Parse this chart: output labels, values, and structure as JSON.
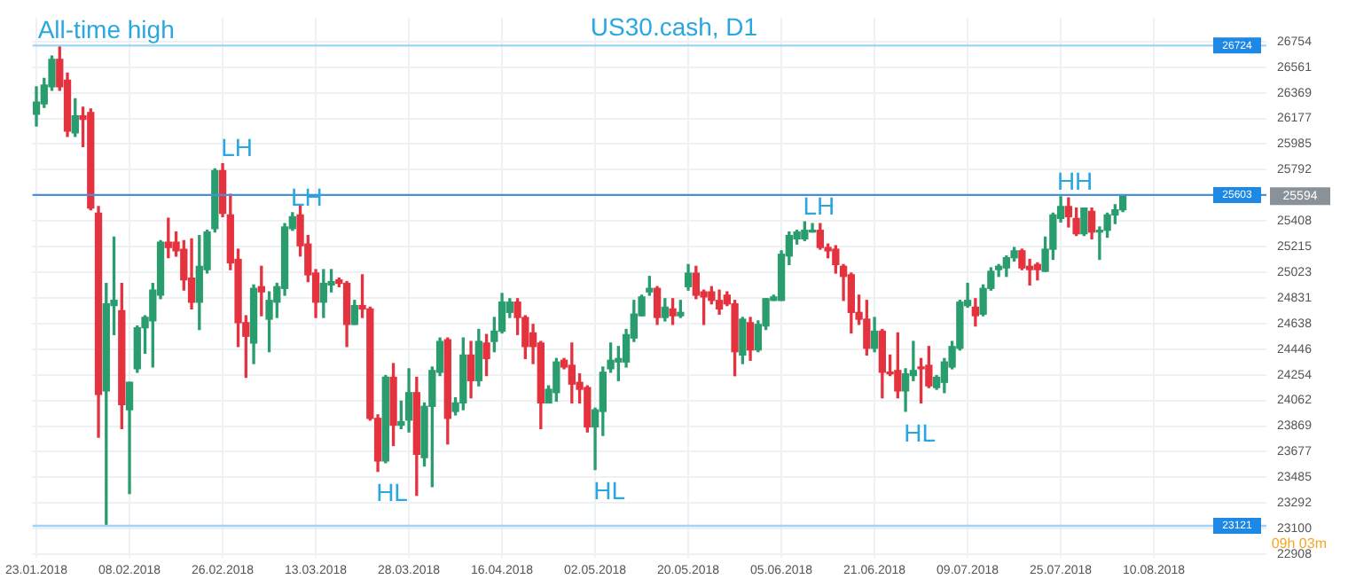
{
  "chart_data": {
    "type": "candlestick",
    "title": "US30.cash, D1",
    "categories": [
      "23.01.2018",
      null,
      null,
      null,
      null,
      null,
      null,
      null,
      null,
      null,
      null,
      null,
      "08.02.2018",
      null,
      null,
      null,
      null,
      null,
      null,
      null,
      null,
      null,
      null,
      null,
      "26.02.2018",
      null,
      null,
      null,
      null,
      null,
      null,
      null,
      null,
      null,
      null,
      null,
      "13.03.2018",
      null,
      null,
      null,
      null,
      null,
      null,
      null,
      null,
      null,
      null,
      null,
      "28.03.2018",
      null,
      null,
      null,
      null,
      null,
      null,
      null,
      null,
      null,
      null,
      null,
      "16.04.2018",
      null,
      null,
      null,
      null,
      null,
      null,
      null,
      null,
      null,
      null,
      null,
      "02.05.2018",
      null,
      null,
      null,
      null,
      null,
      null,
      null,
      null,
      null,
      null,
      null,
      "20.05.2018",
      null,
      null,
      null,
      null,
      null,
      null,
      null,
      null,
      null,
      null,
      null,
      "05.06.2018",
      null,
      null,
      null,
      null,
      null,
      null,
      null,
      null,
      null,
      null,
      null,
      "21.06.2018",
      null,
      null,
      null,
      null,
      null,
      null,
      null,
      null,
      null,
      null,
      null,
      "09.07.2018",
      null,
      null,
      null,
      null,
      null,
      null,
      null,
      null,
      null,
      null,
      null,
      "25.07.2018",
      null,
      null,
      null,
      null,
      null,
      null,
      null,
      null,
      null,
      null,
      null,
      "10.08.2018",
      null,
      null,
      null,
      null,
      null,
      null,
      null,
      null,
      null,
      null,
      null,
      null,
      null,
      null
    ],
    "ohlc": [
      [
        26209,
        26415,
        26120,
        26300
      ],
      [
        26287,
        26478,
        26261,
        26427
      ],
      [
        26415,
        26645,
        26389,
        26620
      ],
      [
        26620,
        26724,
        26389,
        26415
      ],
      [
        26465,
        26517,
        26043,
        26082
      ],
      [
        26069,
        26325,
        26043,
        26197
      ],
      [
        26197,
        26261,
        25966,
        26171
      ],
      [
        26222,
        26248,
        25492,
        25505
      ],
      [
        25466,
        25517,
        23786,
        24107
      ],
      [
        24133,
        24940,
        23121,
        24786
      ],
      [
        24773,
        25287,
        24556,
        24812
      ],
      [
        24735,
        24940,
        23850,
        24030
      ],
      [
        23991,
        24197,
        23363,
        24197
      ],
      [
        24299,
        24620,
        24273,
        24607
      ],
      [
        24607,
        24697,
        24415,
        24684
      ],
      [
        24658,
        24940,
        24312,
        24889
      ],
      [
        24851,
        25261,
        24825,
        25248
      ],
      [
        25248,
        25428,
        25132,
        25209
      ],
      [
        25248,
        25325,
        25145,
        25184
      ],
      [
        25196,
        25261,
        24889,
        24966
      ],
      [
        24979,
        25274,
        24748,
        24799
      ],
      [
        24799,
        25299,
        24594,
        25068
      ],
      [
        25043,
        25338,
        25017,
        25325
      ],
      [
        25351,
        25799,
        25325,
        25786
      ],
      [
        25786,
        25838,
        25440,
        25466
      ],
      [
        25453,
        25607,
        25043,
        25094
      ],
      [
        25120,
        25196,
        24466,
        24645
      ],
      [
        24645,
        24697,
        24235,
        24543
      ],
      [
        24492,
        24928,
        24338,
        24902
      ],
      [
        24915,
        25068,
        24697,
        24876
      ],
      [
        24671,
        24876,
        24427,
        24812
      ],
      [
        24799,
        24940,
        24684,
        24915
      ],
      [
        24902,
        25389,
        24851,
        25363
      ],
      [
        25351,
        25470,
        25338,
        25440
      ],
      [
        25453,
        25530,
        25145,
        25222
      ],
      [
        25235,
        25299,
        24953,
        25004
      ],
      [
        25017,
        25043,
        24684,
        24799
      ],
      [
        24799,
        25043,
        24684,
        24940
      ],
      [
        24928,
        25043,
        24876,
        24953
      ],
      [
        24966,
        24979,
        24915,
        24940
      ],
      [
        24940,
        24953,
        24466,
        24632
      ],
      [
        24632,
        24812,
        24632,
        24773
      ],
      [
        24773,
        25004,
        24684,
        24748
      ],
      [
        24748,
        24761,
        23914,
        23927
      ],
      [
        23927,
        23953,
        23530,
        23607
      ],
      [
        23607,
        24248,
        23594,
        24235
      ],
      [
        24235,
        24338,
        23723,
        23876
      ],
      [
        23876,
        24056,
        23850,
        23902
      ],
      [
        23914,
        24299,
        23825,
        24120
      ],
      [
        24120,
        24235,
        23350,
        23658
      ],
      [
        23633,
        24043,
        23569,
        24017
      ],
      [
        24017,
        24312,
        23415,
        24286
      ],
      [
        24273,
        24530,
        24248,
        24504
      ],
      [
        24517,
        24530,
        23735,
        23927
      ],
      [
        23979,
        24081,
        23953,
        24043
      ],
      [
        24043,
        24530,
        23992,
        24402
      ],
      [
        24402,
        24504,
        24081,
        24210
      ],
      [
        24210,
        24594,
        24171,
        24504
      ],
      [
        24492,
        24556,
        24248,
        24376
      ],
      [
        24504,
        24684,
        24427,
        24581
      ],
      [
        24581,
        24864,
        24568,
        24799
      ],
      [
        24722,
        24825,
        24684,
        24799
      ],
      [
        24799,
        24825,
        24556,
        24684
      ],
      [
        24684,
        24697,
        24376,
        24466
      ],
      [
        24568,
        24632,
        24338,
        24466
      ],
      [
        24492,
        24504,
        23850,
        24043
      ],
      [
        24043,
        24171,
        24043,
        24145
      ],
      [
        24120,
        24376,
        24056,
        24350
      ],
      [
        24363,
        24376,
        24299,
        24312
      ],
      [
        24325,
        24492,
        24043,
        24184
      ],
      [
        24197,
        24261,
        24043,
        24145
      ],
      [
        24158,
        24171,
        23825,
        23863
      ],
      [
        23863,
        24004,
        23543,
        23991
      ],
      [
        23979,
        24312,
        23799,
        24273
      ],
      [
        24299,
        24492,
        24273,
        24363
      ],
      [
        24350,
        24466,
        24210,
        24376
      ],
      [
        24350,
        24594,
        24312,
        24555
      ],
      [
        24530,
        24812,
        24504,
        24709
      ],
      [
        24697,
        24851,
        24697,
        24838
      ],
      [
        24876,
        24992,
        24851,
        24902
      ],
      [
        24902,
        24915,
        24632,
        24684
      ],
      [
        24684,
        24825,
        24658,
        24761
      ],
      [
        24748,
        24825,
        24632,
        24697
      ],
      [
        24697,
        24812,
        24684,
        24722
      ],
      [
        24915,
        25081,
        24889,
        25016
      ],
      [
        25016,
        25068,
        24825,
        24851
      ],
      [
        24876,
        24889,
        24632,
        24838
      ],
      [
        24876,
        24915,
        24786,
        24812
      ],
      [
        24812,
        24889,
        24709,
        24748
      ],
      [
        24851,
        24876,
        24773,
        24786
      ],
      [
        24786,
        24812,
        24247,
        24427
      ],
      [
        24402,
        24684,
        24338,
        24671
      ],
      [
        24645,
        24684,
        24363,
        24440
      ],
      [
        24440,
        24658,
        24427,
        24632
      ],
      [
        24620,
        24825,
        24594,
        24825
      ],
      [
        24812,
        24851,
        24812,
        24838
      ],
      [
        24812,
        25184,
        24812,
        25158
      ],
      [
        25145,
        25325,
        25081,
        25299
      ],
      [
        25274,
        25338,
        25235,
        25325
      ],
      [
        25274,
        25402,
        25261,
        25338
      ],
      [
        25325,
        25389,
        25325,
        25338
      ],
      [
        25338,
        25389,
        25196,
        25209
      ],
      [
        25209,
        25235,
        25132,
        25184
      ],
      [
        25196,
        25222,
        25017,
        25081
      ],
      [
        25068,
        25081,
        24812,
        24992
      ],
      [
        25004,
        25017,
        24568,
        24722
      ],
      [
        24722,
        24851,
        24632,
        24671
      ],
      [
        24671,
        24812,
        24402,
        24453
      ],
      [
        24453,
        24684,
        24427,
        24581
      ],
      [
        24581,
        24594,
        24081,
        24273
      ],
      [
        24273,
        24402,
        24248,
        24261
      ],
      [
        24286,
        24568,
        24081,
        24133
      ],
      [
        24133,
        24299,
        23980,
        24261
      ],
      [
        24248,
        24504,
        24210,
        24286
      ],
      [
        24312,
        24376,
        24043,
        24299
      ],
      [
        24325,
        24466,
        24158,
        24171
      ],
      [
        24158,
        24248,
        24145,
        24235
      ],
      [
        24197,
        24376,
        24120,
        24350
      ],
      [
        24312,
        24504,
        24299,
        24466
      ],
      [
        24453,
        24812,
        24440,
        24799
      ],
      [
        24773,
        24940,
        24761,
        24812
      ],
      [
        24761,
        24825,
        24620,
        24697
      ],
      [
        24709,
        24928,
        24697,
        24902
      ],
      [
        24902,
        25056,
        24889,
        25030
      ],
      [
        25043,
        25081,
        24992,
        25068
      ],
      [
        25056,
        25145,
        24992,
        25132
      ],
      [
        25132,
        25209,
        25107,
        25184
      ],
      [
        25184,
        25196,
        25043,
        25056
      ],
      [
        25068,
        25120,
        24928,
        25043
      ],
      [
        25081,
        25094,
        24966,
        25043
      ],
      [
        25030,
        25287,
        25030,
        25196
      ],
      [
        25196,
        25466,
        25120,
        25453
      ],
      [
        25427,
        25590,
        25400,
        25517
      ],
      [
        25517,
        25581,
        25363,
        25440
      ],
      [
        25427,
        25505,
        25299,
        25312
      ],
      [
        25312,
        25505,
        25299,
        25505
      ],
      [
        25479,
        25505,
        25274,
        25325
      ],
      [
        25325,
        25363,
        25120,
        25338
      ],
      [
        25338,
        25466,
        25286,
        25453
      ],
      [
        25453,
        25530,
        25389,
        25492
      ],
      [
        25492,
        25600,
        25479,
        25594
      ],
      null,
      null,
      null,
      null,
      null,
      null,
      null,
      null,
      null,
      null,
      null,
      null,
      null,
      null,
      null,
      null,
      null,
      null
    ],
    "colors": [
      "#2a9d6e",
      "#2a9d6e",
      "#2a9d6e",
      "#e5323f",
      "#e5323f",
      "#2a9d6e",
      "#e5323f",
      "#e5323f",
      "#e5323f",
      "#2a9d6e",
      "#2a9d6e",
      "#e5323f",
      "#2a9d6e",
      "#2a9d6e",
      "#2a9d6e",
      "#2a9d6e",
      "#2a9d6e",
      "#e5323f",
      "#e5323f",
      "#e5323f",
      "#e5323f",
      "#2a9d6e",
      "#2a9d6e",
      "#2a9d6e",
      "#e5323f",
      "#e5323f",
      "#e5323f",
      "#e5323f",
      "#2a9d6e",
      "#e5323f",
      "#2a9d6e",
      "#2a9d6e",
      "#2a9d6e",
      "#2a9d6e",
      "#e5323f",
      "#e5323f",
      "#e5323f",
      "#2a9d6e",
      "#2a9d6e",
      "#e5323f",
      "#e5323f",
      "#2a9d6e",
      "#e5323f",
      "#e5323f",
      "#e5323f",
      "#2a9d6e",
      "#e5323f",
      "#2a9d6e",
      "#2a9d6e",
      "#e5323f",
      "#2a9d6e",
      "#2a9d6e",
      "#2a9d6e",
      "#e5323f",
      "#2a9d6e",
      "#2a9d6e",
      "#e5323f",
      "#2a9d6e",
      "#e5323f",
      "#2a9d6e",
      "#2a9d6e",
      "#2a9d6e",
      "#e5323f",
      "#e5323f",
      "#e5323f",
      "#e5323f",
      "#2a9d6e",
      "#2a9d6e",
      "#e5323f",
      "#e5323f",
      "#e5323f",
      "#e5323f",
      "#2a9d6e",
      "#2a9d6e",
      "#2a9d6e",
      "#2a9d6e",
      "#2a9d6e",
      "#2a9d6e",
      "#2a9d6e",
      "#2a9d6e",
      "#e5323f",
      "#2a9d6e",
      "#e5323f",
      "#2a9d6e",
      "#2a9d6e",
      "#e5323f",
      "#e5323f",
      "#e5323f",
      "#e5323f",
      "#e5323f",
      "#e5323f",
      "#2a9d6e",
      "#e5323f",
      "#2a9d6e",
      "#2a9d6e",
      "#2a9d6e",
      "#2a9d6e",
      "#2a9d6e",
      "#2a9d6e",
      "#2a9d6e",
      "#2a9d6e",
      "#e5323f",
      "#e5323f",
      "#e5323f",
      "#e5323f",
      "#e5323f",
      "#e5323f",
      "#e5323f",
      "#2a9d6e",
      "#e5323f",
      "#e5323f",
      "#e5323f",
      "#2a9d6e",
      "#2a9d6e",
      "#e5323f",
      "#e5323f",
      "#2a9d6e",
      "#2a9d6e",
      "#2a9d6e",
      "#2a9d6e",
      "#2a9d6e",
      "#e5323f",
      "#2a9d6e",
      "#2a9d6e",
      "#2a9d6e",
      "#2a9d6e",
      "#2a9d6e",
      "#e5323f",
      "#e5323f",
      "#e5323f",
      "#2a9d6e",
      "#2a9d6e",
      "#2a9d6e",
      "#e5323f",
      "#e5323f",
      "#2a9d6e",
      "#e5323f",
      "#2a9d6e",
      "#2a9d6e",
      "#2a9d6e",
      "#2a9d6e",
      null,
      null,
      null,
      null,
      null,
      null,
      null,
      null,
      null,
      null,
      null,
      null,
      null,
      null,
      null,
      null,
      null,
      null
    ],
    "value_labels": [
      null,
      null,
      null,
      null,
      null,
      null,
      null,
      null,
      null,
      null,
      null,
      null,
      null,
      null,
      null,
      null,
      null,
      null,
      null,
      null,
      null,
      null,
      null,
      null,
      "LH",
      null,
      null,
      null,
      null,
      null,
      null,
      null,
      null,
      "LH",
      null,
      null,
      null,
      null,
      null,
      null,
      null,
      null,
      null,
      null,
      "HL",
      null,
      null,
      null,
      null,
      null,
      null,
      null,
      null,
      null,
      null,
      null,
      null,
      null,
      null,
      null,
      null,
      null,
      null,
      null,
      null,
      null,
      null,
      null,
      null,
      null,
      null,
      null,
      "HL",
      null,
      null,
      null,
      null,
      null,
      null,
      null,
      null,
      null,
      null,
      null,
      null,
      null,
      null,
      null,
      null,
      null,
      null,
      null,
      null,
      null,
      null,
      null,
      null,
      null,
      null,
      "LH",
      null,
      null,
      null,
      null,
      null,
      null,
      null,
      null,
      null,
      null,
      null,
      null,
      "HL",
      null,
      null,
      null,
      null,
      null,
      null,
      null,
      null,
      null,
      null,
      null,
      null,
      null,
      null,
      null,
      null,
      null,
      null,
      null,
      "HH",
      null,
      null,
      null,
      null,
      null,
      null,
      null,
      null,
      null,
      null,
      null,
      null,
      null,
      null,
      null,
      null,
      null,
      null,
      null,
      null,
      null,
      null,
      null,
      null,
      null,
      null
    ],
    "ylim": [
      22880,
      26930
    ],
    "yticks": [
      26754,
      26561,
      26369,
      26177,
      25985,
      25792,
      {
        "value": 25600,
        "label": null
      },
      25408,
      25215,
      25023,
      24831,
      24638,
      24446,
      24254,
      24062,
      23869,
      23677,
      23485,
      23292,
      23100,
      22908
    ],
    "grid": true,
    "legend": false,
    "ref_lines": [
      {
        "axis": "y",
        "value": 26724,
        "label": "26724",
        "color": "#9fd3f7"
      },
      {
        "axis": "y",
        "value": 25603,
        "label": "25603",
        "color": "#4a8fd6"
      },
      {
        "axis": "y",
        "value": 23121,
        "label": "23121",
        "color": "#9fd3f7"
      }
    ],
    "annotations": [
      "25594",
      "09h 03m",
      {
        "text": "All-time high",
        "y": 26724
      }
    ]
  }
}
